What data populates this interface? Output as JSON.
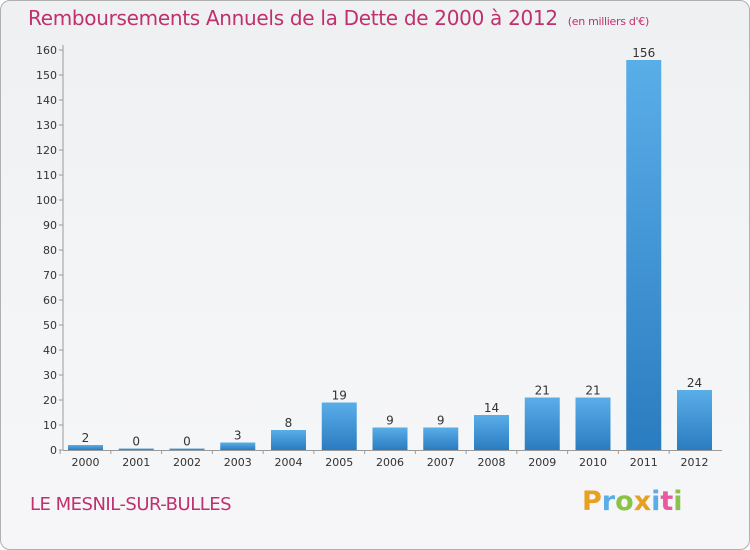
{
  "header": {
    "title": "Remboursements Annuels de la Dette de 2000 à 2012",
    "unit": "(en milliers d'€)"
  },
  "footer": {
    "place": "LE MESNIL-SUR-BULLES",
    "logo": "Proxiti"
  },
  "colors": {
    "title": "#c0306e",
    "bar_light": "#5aaee8",
    "bar_dark": "#2a7cc0",
    "grid": "#d8d8d8"
  },
  "chart_data": {
    "type": "bar",
    "title": "Remboursements Annuels de la Dette de 2000 à 2012",
    "subtitle": "(en milliers d'€)",
    "categories": [
      "2000",
      "2001",
      "2002",
      "2003",
      "2004",
      "2005",
      "2006",
      "2007",
      "2008",
      "2009",
      "2010",
      "2011",
      "2012"
    ],
    "values": [
      2,
      0,
      0,
      3,
      8,
      19,
      9,
      9,
      14,
      21,
      21,
      156,
      24
    ],
    "ylim": [
      0,
      160
    ],
    "yticks": [
      0,
      10,
      20,
      30,
      40,
      50,
      60,
      70,
      80,
      90,
      100,
      110,
      120,
      130,
      140,
      150,
      160
    ],
    "xlabel": "",
    "ylabel": "",
    "grid": "none",
    "legend": "none"
  }
}
